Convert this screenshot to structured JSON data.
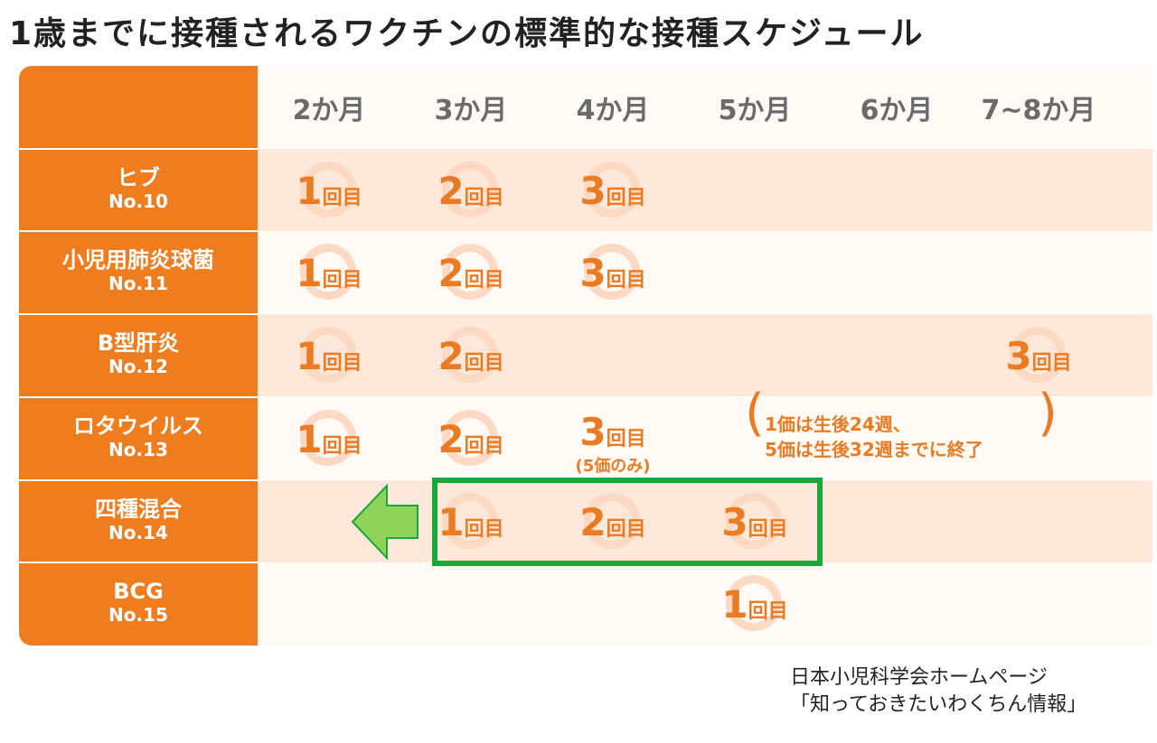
{
  "title": "1歳までに接種されるワクチンの標準的な接種スケジュール",
  "months": [
    "2か月",
    "3か月",
    "4か月",
    "5か月",
    "6か月",
    "7~8か月"
  ],
  "kai_label": "回目",
  "vaccines": [
    {
      "name": "ヒブ",
      "no": "No.10"
    },
    {
      "name": "小児用肺炎球菌",
      "no": "No.11"
    },
    {
      "name": "B型肝炎",
      "no": "No.12"
    },
    {
      "name": "ロタウイルス",
      "no": "No.13"
    },
    {
      "name": "四種混合",
      "no": "No.14"
    },
    {
      "name": "BCG",
      "no": "No.15"
    }
  ],
  "doses": [
    {
      "row": 0,
      "col": 0,
      "n": "1"
    },
    {
      "row": 0,
      "col": 1,
      "n": "2"
    },
    {
      "row": 0,
      "col": 2,
      "n": "3"
    },
    {
      "row": 1,
      "col": 0,
      "n": "1"
    },
    {
      "row": 1,
      "col": 1,
      "n": "2"
    },
    {
      "row": 1,
      "col": 2,
      "n": "3"
    },
    {
      "row": 2,
      "col": 0,
      "n": "1"
    },
    {
      "row": 2,
      "col": 1,
      "n": "2"
    },
    {
      "row": 2,
      "col": 5,
      "n": "3"
    },
    {
      "row": 3,
      "col": 0,
      "n": "1"
    },
    {
      "row": 3,
      "col": 1,
      "n": "2"
    },
    {
      "row": 3,
      "col": 2,
      "n": "3",
      "plain": true,
      "note": "(5価のみ)"
    },
    {
      "row": 4,
      "col": 1,
      "n": "1"
    },
    {
      "row": 4,
      "col": 2,
      "n": "2"
    },
    {
      "row": 4,
      "col": 3,
      "n": "3"
    },
    {
      "row": 5,
      "col": 3,
      "n": "1"
    }
  ],
  "rota_note": {
    "line1": "1価は生後24週、",
    "line2": "5価は生後32週までに終了",
    "open_paren": "(",
    "close_paren": ")"
  },
  "source": {
    "line1": "日本小児科学会ホームページ",
    "line2": "「知っておきたいわくちん情報」"
  },
  "colors": {
    "orange": "#ef7d1e",
    "dose_text": "#ea7b22",
    "ring": "#fbd9c2",
    "band_light": "#fde8da",
    "green_box": "#19a83a",
    "arrow": "#8fd35a"
  },
  "highlight": {
    "row": 4,
    "cols": [
      1,
      3
    ],
    "arrow": "left"
  }
}
